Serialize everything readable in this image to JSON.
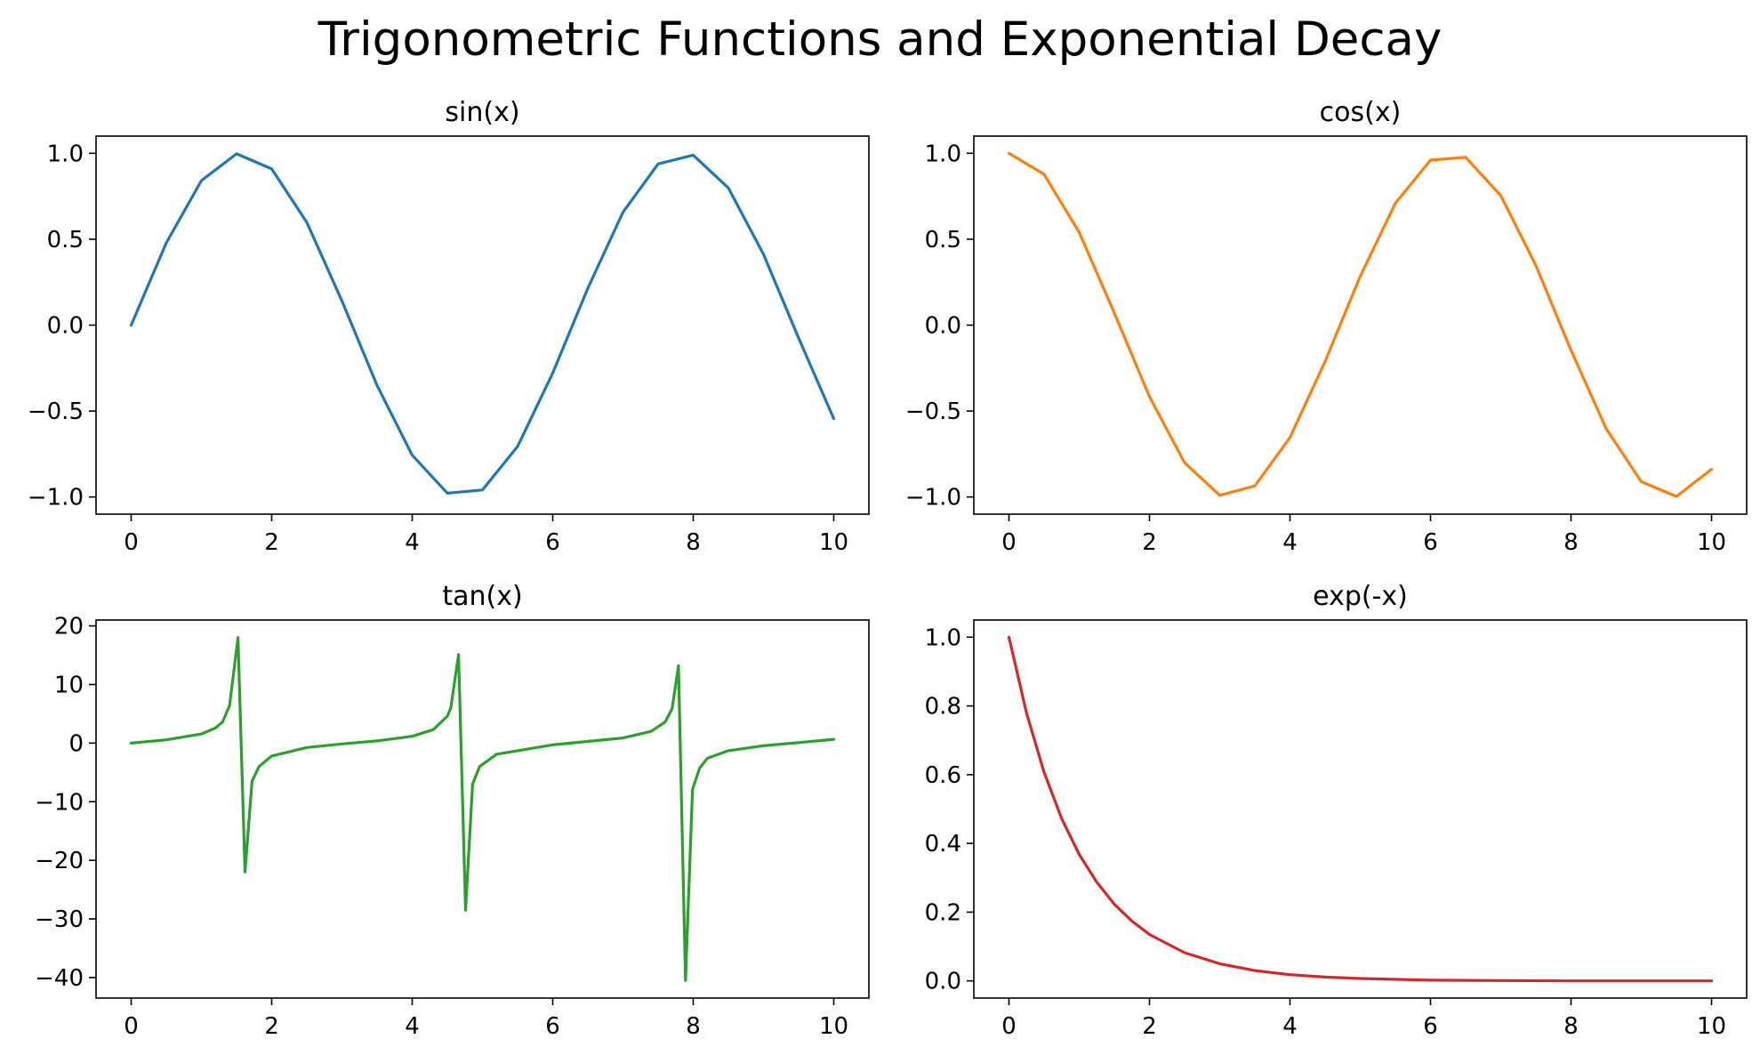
{
  "suptitle": "Trigonometric Functions and Exponential Decay",
  "chart_data": [
    {
      "type": "line",
      "title": "sin(x)",
      "color": "#1f77b4",
      "xlim": [
        -0.5,
        10.5
      ],
      "ylim": [
        -1.1,
        1.1
      ],
      "xticks": [
        0,
        2,
        4,
        6,
        8,
        10
      ],
      "xtick_labels": [
        "0",
        "2",
        "4",
        "6",
        "8",
        "10"
      ],
      "yticks": [
        1.0,
        0.5,
        0.0,
        -0.5,
        -1.0
      ],
      "ytick_labels": [
        "1.0",
        "0.5",
        "0.0",
        "−0.5",
        "−1.0"
      ],
      "x": [
        0,
        0.5,
        1,
        1.5,
        2,
        2.5,
        3,
        3.5,
        4,
        4.5,
        5,
        5.5,
        6,
        6.5,
        7,
        7.5,
        8,
        8.5,
        9,
        9.5,
        10
      ],
      "y": [
        0.0,
        0.479,
        0.841,
        0.997,
        0.909,
        0.598,
        0.141,
        -0.351,
        -0.757,
        -0.978,
        -0.959,
        -0.706,
        -0.279,
        0.215,
        0.657,
        0.938,
        0.989,
        0.798,
        0.412,
        -0.075,
        -0.544
      ]
    },
    {
      "type": "line",
      "title": "cos(x)",
      "color": "#ff7f0e",
      "xlim": [
        -0.5,
        10.5
      ],
      "ylim": [
        -1.1,
        1.1
      ],
      "xticks": [
        0,
        2,
        4,
        6,
        8,
        10
      ],
      "xtick_labels": [
        "0",
        "2",
        "4",
        "6",
        "8",
        "10"
      ],
      "yticks": [
        1.0,
        0.5,
        0.0,
        -0.5,
        -1.0
      ],
      "ytick_labels": [
        "1.0",
        "0.5",
        "0.0",
        "−0.5",
        "−1.0"
      ],
      "x": [
        0,
        0.5,
        1,
        1.5,
        2,
        2.5,
        3,
        3.5,
        4,
        4.5,
        5,
        5.5,
        6,
        6.5,
        7,
        7.5,
        8,
        8.5,
        9,
        9.5,
        10
      ],
      "y": [
        1.0,
        0.878,
        0.54,
        0.071,
        -0.416,
        -0.801,
        -0.99,
        -0.936,
        -0.654,
        -0.211,
        0.284,
        0.709,
        0.96,
        0.977,
        0.754,
        0.347,
        -0.146,
        -0.602,
        -0.911,
        -0.997,
        -0.839
      ]
    },
    {
      "type": "line",
      "title": "tan(x)",
      "color": "#2ca02c",
      "xlim": [
        -0.5,
        10.5
      ],
      "ylim": [
        -43.5,
        21
      ],
      "xticks": [
        0,
        2,
        4,
        6,
        8,
        10
      ],
      "xtick_labels": [
        "0",
        "2",
        "4",
        "6",
        "8",
        "10"
      ],
      "yticks": [
        20,
        10,
        0,
        -10,
        -20,
        -30,
        -40
      ],
      "ytick_labels": [
        "20",
        "10",
        "0",
        "−10",
        "−20",
        "−30",
        "−40"
      ],
      "x": [
        0,
        0.5,
        1.0,
        1.2,
        1.3,
        1.4,
        1.52,
        1.62,
        1.72,
        1.82,
        2.0,
        2.5,
        3.0,
        3.5,
        4.0,
        4.3,
        4.5,
        4.55,
        4.66,
        4.76,
        4.86,
        4.96,
        5.2,
        6.0,
        7.0,
        7.4,
        7.6,
        7.7,
        7.79,
        7.89,
        7.99,
        8.09,
        8.2,
        8.5,
        9.0,
        9.5,
        10.0
      ],
      "y": [
        0.0,
        0.55,
        1.56,
        2.57,
        3.6,
        6.4,
        18.0,
        -22.0,
        -6.5,
        -4.0,
        -2.2,
        -0.75,
        -0.14,
        0.37,
        1.16,
        2.3,
        4.6,
        6.0,
        15.1,
        -28.5,
        -7.0,
        -4.0,
        -1.9,
        -0.29,
        0.87,
        2.0,
        3.6,
        5.9,
        13.2,
        -40.5,
        -7.9,
        -4.3,
        -2.6,
        -1.3,
        -0.45,
        0.08,
        0.65
      ]
    },
    {
      "type": "line",
      "title": "exp(-x)",
      "color": "#d62728",
      "xlim": [
        -0.5,
        10.5
      ],
      "ylim": [
        -0.05,
        1.05
      ],
      "xticks": [
        0,
        2,
        4,
        6,
        8,
        10
      ],
      "xtick_labels": [
        "0",
        "2",
        "4",
        "6",
        "8",
        "10"
      ],
      "yticks": [
        1.0,
        0.8,
        0.6,
        0.4,
        0.2,
        0.0
      ],
      "ytick_labels": [
        "1.0",
        "0.8",
        "0.6",
        "0.4",
        "0.2",
        "0.0"
      ],
      "x": [
        0,
        0.25,
        0.5,
        0.75,
        1,
        1.25,
        1.5,
        1.75,
        2,
        2.5,
        3,
        3.5,
        4,
        4.5,
        5,
        6,
        7,
        8,
        9,
        10
      ],
      "y": [
        1.0,
        0.779,
        0.607,
        0.472,
        0.368,
        0.287,
        0.223,
        0.174,
        0.135,
        0.082,
        0.05,
        0.03,
        0.018,
        0.011,
        0.007,
        0.002,
        0.001,
        0.0,
        0.0,
        0.0
      ]
    }
  ]
}
